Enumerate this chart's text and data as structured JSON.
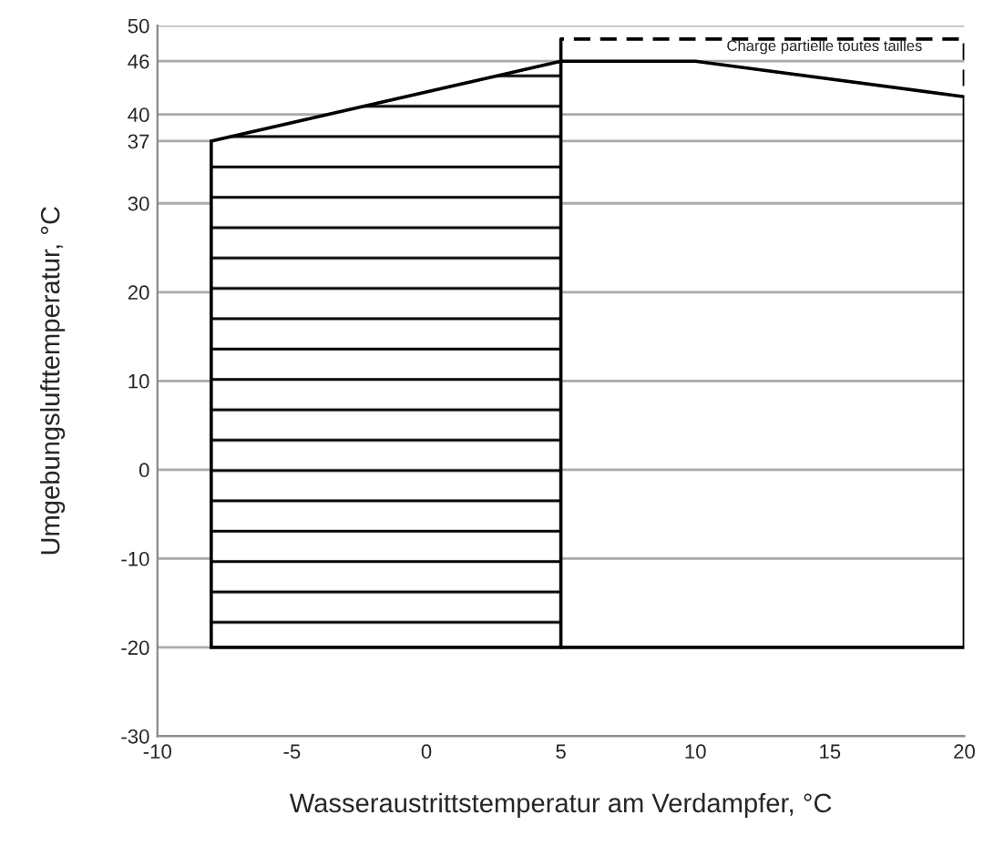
{
  "chart_data": {
    "type": "line",
    "xlabel": "Wasseraustrittstemperatur am Verdampfer, °C",
    "ylabel": "Umgebungslufttemperatur, °C",
    "xlim": [
      -10,
      20
    ],
    "xticks": [
      -10,
      -5,
      0,
      5,
      10,
      15,
      20
    ],
    "ylim": [
      -30,
      50
    ],
    "yticks": [
      -30,
      -20,
      -10,
      0,
      10,
      20,
      30,
      37,
      40,
      46,
      50
    ],
    "grid": "y",
    "series": [
      {
        "type": "area",
        "color": "#000000",
        "x": [
          -8,
          -8,
          5,
          5
        ],
        "values": [
          -20,
          37,
          46,
          -20
        ]
      },
      {
        "color": "#000000",
        "x": [
          5,
          5,
          10,
          20,
          20,
          5
        ],
        "values": [
          47,
          46,
          46,
          42,
          -20,
          -20
        ],
        "line_style": "solid"
      },
      {
        "color": "#000000",
        "x": [
          5,
          5,
          20,
          20
        ],
        "values": [
          47,
          48.5,
          48.5,
          42
        ],
        "line_style": "dashed"
      }
    ],
    "annotations": [
      {
        "text": "Charge partielle toutes tailles",
        "x": 14.8,
        "y": 47.6
      }
    ]
  }
}
